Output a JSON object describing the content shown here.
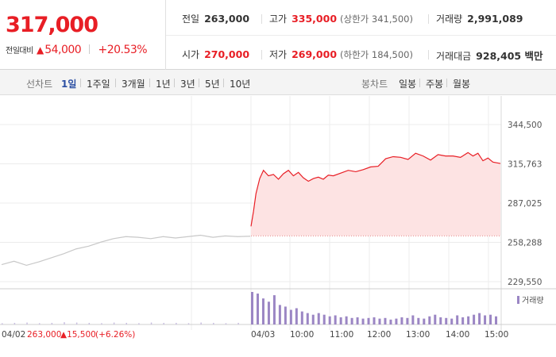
{
  "header": {
    "price": "317,000",
    "change_label": "전일대비",
    "change_amount": "54,000",
    "change_percent": "+20.53%",
    "up_color": "#e81e25",
    "stats": {
      "prev_close_label": "전일",
      "prev_close": "263,000",
      "high_label": "고가",
      "high": "335,000",
      "upper_limit": "(상한가 341,500)",
      "volume_label": "거래량",
      "volume": "2,991,089",
      "open_label": "시가",
      "open": "270,000",
      "low_label": "저가",
      "low": "269,000",
      "lower_limit": "(하한가 184,500)",
      "value_label": "거래대금",
      "value": "928,405 백만"
    }
  },
  "tabs": {
    "line_label": "선차트",
    "line_items": [
      "1일",
      "1주일",
      "3개월",
      "1년",
      "3년",
      "5년",
      "10년"
    ],
    "active_index": 0,
    "candle_label": "봉차트",
    "candle_items": [
      "일봉",
      "주봉",
      "월봉"
    ]
  },
  "chart_data": {
    "type": "line",
    "y_ticks": [
      "344,500",
      "315,763",
      "287,025",
      "258,288",
      "229,550"
    ],
    "ylim": [
      229550,
      344500
    ],
    "reference_price": 263000,
    "x_ticks": [
      "04/02",
      "04/03",
      "10:00",
      "11:00",
      "12:00",
      "13:00",
      "14:00",
      "15:00"
    ],
    "prev_day_summary": {
      "close": "263,000",
      "change": "15,500",
      "percent": "(+6.26%)"
    },
    "volume_legend": "거래량",
    "series": [
      {
        "day": "04/02",
        "color": "#c8c8c8",
        "points": [
          [
            0,
            242000
          ],
          [
            0.05,
            244500
          ],
          [
            0.1,
            241500
          ],
          [
            0.15,
            244000
          ],
          [
            0.2,
            247000
          ],
          [
            0.25,
            250000
          ],
          [
            0.3,
            253500
          ],
          [
            0.35,
            255500
          ],
          [
            0.4,
            258500
          ],
          [
            0.45,
            261000
          ],
          [
            0.5,
            262500
          ],
          [
            0.55,
            262000
          ],
          [
            0.6,
            261000
          ],
          [
            0.65,
            262500
          ],
          [
            0.7,
            261500
          ],
          [
            0.75,
            262500
          ],
          [
            0.8,
            263500
          ],
          [
            0.85,
            262000
          ],
          [
            0.9,
            263000
          ],
          [
            0.95,
            262500
          ],
          [
            1,
            262800
          ]
        ]
      },
      {
        "day": "04/03",
        "color": "#e81e25",
        "fill": "#fde3e3",
        "points": [
          [
            0,
            270000
          ],
          [
            0.01,
            281000
          ],
          [
            0.02,
            294000
          ],
          [
            0.035,
            305000
          ],
          [
            0.05,
            311000
          ],
          [
            0.07,
            307000
          ],
          [
            0.09,
            308000
          ],
          [
            0.11,
            304500
          ],
          [
            0.13,
            308500
          ],
          [
            0.15,
            311000
          ],
          [
            0.17,
            307000
          ],
          [
            0.19,
            309500
          ],
          [
            0.21,
            305500
          ],
          [
            0.23,
            303000
          ],
          [
            0.25,
            305000
          ],
          [
            0.27,
            306000
          ],
          [
            0.29,
            304500
          ],
          [
            0.31,
            307500
          ],
          [
            0.33,
            307000
          ],
          [
            0.36,
            309000
          ],
          [
            0.39,
            311000
          ],
          [
            0.42,
            310000
          ],
          [
            0.45,
            311500
          ],
          [
            0.48,
            313500
          ],
          [
            0.51,
            314000
          ],
          [
            0.54,
            319500
          ],
          [
            0.57,
            321000
          ],
          [
            0.6,
            320500
          ],
          [
            0.63,
            319000
          ],
          [
            0.66,
            323500
          ],
          [
            0.69,
            321500
          ],
          [
            0.72,
            318500
          ],
          [
            0.75,
            322500
          ],
          [
            0.78,
            321500
          ],
          [
            0.81,
            321500
          ],
          [
            0.84,
            320500
          ],
          [
            0.87,
            324000
          ],
          [
            0.89,
            321500
          ],
          [
            0.91,
            323500
          ],
          [
            0.93,
            318000
          ],
          [
            0.95,
            320000
          ],
          [
            0.97,
            317000
          ],
          [
            1,
            316000
          ]
        ]
      }
    ],
    "volume": {
      "day1": [
        0.04,
        0.05,
        0.06,
        0.04,
        0.05,
        0.07,
        0.06,
        0.05,
        0.04,
        0.06,
        0.05,
        0.04,
        0.06,
        0.05,
        0.05,
        0.04,
        0.06,
        0.05,
        0.04,
        0.05
      ],
      "day2": [
        1.0,
        0.95,
        0.8,
        0.7,
        0.9,
        0.6,
        0.55,
        0.45,
        0.5,
        0.4,
        0.35,
        0.3,
        0.35,
        0.3,
        0.25,
        0.28,
        0.22,
        0.25,
        0.2,
        0.22,
        0.18,
        0.2,
        0.22,
        0.18,
        0.2,
        0.15,
        0.18,
        0.22,
        0.2,
        0.28,
        0.2,
        0.18,
        0.25,
        0.3,
        0.22,
        0.2,
        0.18,
        0.28,
        0.22,
        0.25,
        0.3,
        0.35,
        0.28,
        0.3,
        0.25
      ]
    }
  }
}
